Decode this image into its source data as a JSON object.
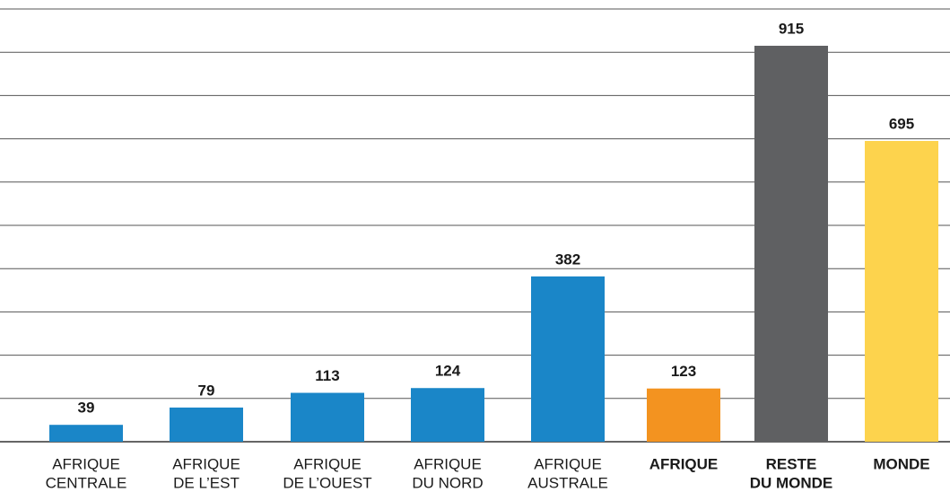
{
  "chart_data": {
    "type": "bar",
    "categories": [
      [
        "AFRIQUE",
        "CENTRALE"
      ],
      [
        "AFRIQUE",
        "DE L’EST"
      ],
      [
        "AFRIQUE",
        "DE L’OUEST"
      ],
      [
        "AFRIQUE",
        "DU NORD"
      ],
      [
        "AFRIQUE",
        "AUSTRALE"
      ],
      [
        "AFRIQUE"
      ],
      [
        "RESTE",
        "DU MONDE"
      ],
      [
        "MONDE"
      ]
    ],
    "values": [
      39,
      79,
      113,
      124,
      382,
      123,
      915,
      695
    ],
    "colors": [
      "#1a86c8",
      "#1a86c8",
      "#1a86c8",
      "#1a86c8",
      "#1a86c8",
      "#f39320",
      "#5f6062",
      "#fdd34d"
    ],
    "ylim": [
      0,
      1000
    ],
    "yticks": [
      0,
      100,
      200,
      300,
      400,
      500,
      600,
      700,
      800,
      900,
      1000
    ],
    "grid": true
  }
}
